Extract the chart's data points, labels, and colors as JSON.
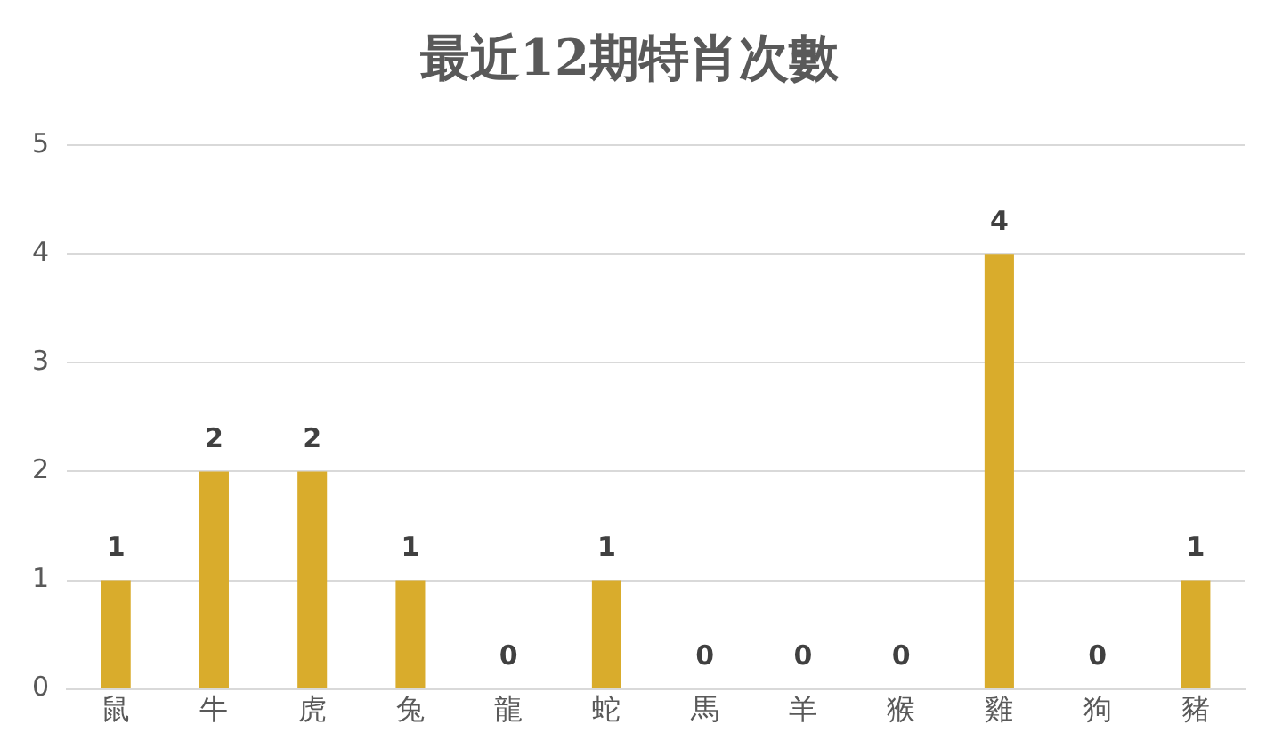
{
  "chart_data": {
    "type": "bar",
    "title": "最近12期特肖次數",
    "categories": [
      "鼠",
      "牛",
      "虎",
      "兔",
      "龍",
      "蛇",
      "馬",
      "羊",
      "猴",
      "雞",
      "狗",
      "豬"
    ],
    "values": [
      1,
      2,
      2,
      1,
      0,
      1,
      0,
      0,
      0,
      4,
      0,
      1
    ],
    "color": "#d9ac2c",
    "ylim": [
      0,
      5
    ],
    "yticks": [
      0,
      1,
      2,
      3,
      4,
      5
    ],
    "grid": "y",
    "data_labels": true,
    "legend": false
  }
}
